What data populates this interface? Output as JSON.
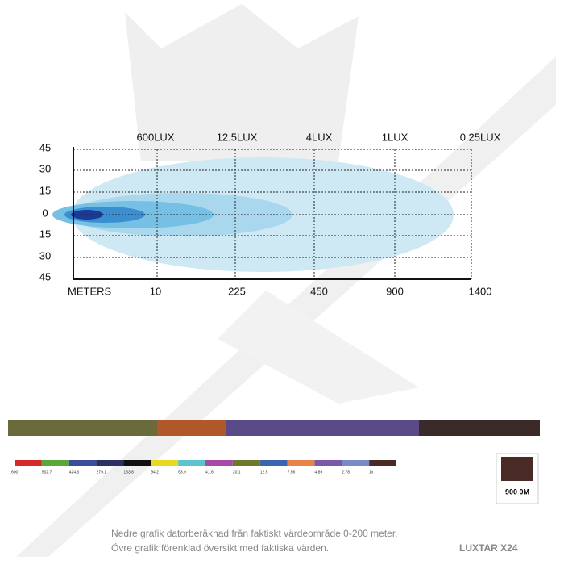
{
  "lux_labels": [
    "600LUX",
    "12.5LUX",
    "4LUX",
    "1LUX",
    "0.25LUX"
  ],
  "y_labels": [
    "45",
    "30",
    "15",
    "0",
    "15",
    "30",
    "45"
  ],
  "x_title": "METERS",
  "x_labels": [
    "10",
    "225",
    "450",
    "900",
    "1400"
  ],
  "scale": {
    "labels": [
      "600",
      "502.7",
      "424.6",
      "279.1",
      "163.8",
      "94.2",
      "63.9",
      "41.6",
      "20.1",
      "12.5",
      "7.56",
      "4.89",
      "2.78",
      "1x"
    ],
    "colors": [
      "#d42a2a",
      "#5aa83a",
      "#3a4f9a",
      "#2a3060",
      "#111111",
      "#e8d820",
      "#5cc4cc",
      "#a84aa8",
      "#6a7a2a",
      "#3a64b0",
      "#e8844a",
      "#7a5aa8",
      "#7a8ac8",
      "#4a2a24"
    ]
  },
  "distance_box": "900 0M",
  "caption": [
    "Nedre grafik datorberäknad från faktiskt värdeområde 0-200 meter.",
    "Övre grafik förenklad översikt med faktiska värden."
  ],
  "brand": "LUXTAR X24"
}
